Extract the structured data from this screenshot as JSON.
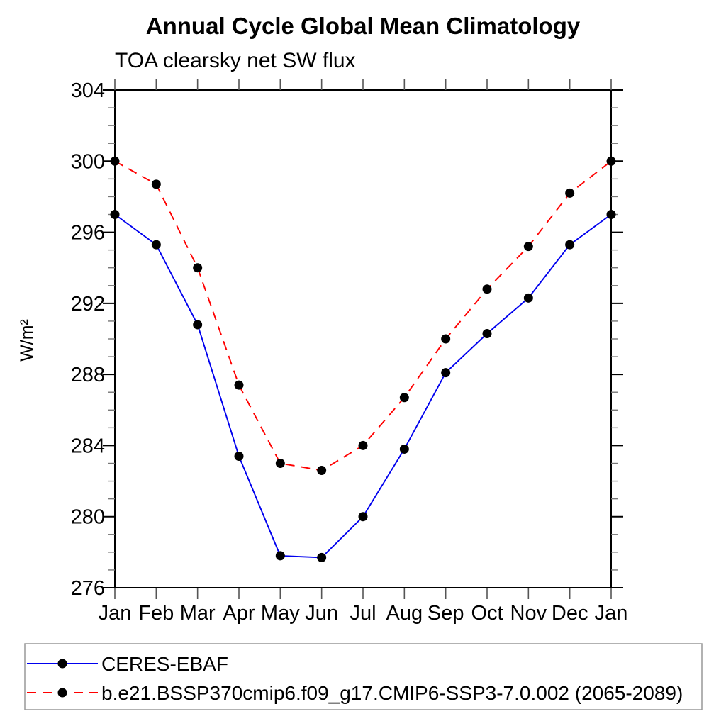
{
  "chart_data": {
    "type": "line",
    "title": "Annual Cycle Global Mean Climatology",
    "subtitle": "TOA clearsky net SW flux",
    "xlabel": "",
    "ylabel": "W/m²",
    "categories": [
      "Jan",
      "Feb",
      "Mar",
      "Apr",
      "May",
      "Jun",
      "Jul",
      "Aug",
      "Sep",
      "Oct",
      "Nov",
      "Dec",
      "Jan"
    ],
    "ylim": [
      276,
      304
    ],
    "ytick_major": 4,
    "ytick_minor": 1,
    "grid": "off",
    "legend_position": "bottom",
    "series": [
      {
        "name": "CERES-EBAF",
        "color": "#0000ee",
        "line_style": "solid",
        "marker": "black-dot",
        "values": [
          297.0,
          295.3,
          290.8,
          283.4,
          277.8,
          277.7,
          280.0,
          283.8,
          288.1,
          290.3,
          292.3,
          295.3,
          297.0
        ]
      },
      {
        "name": "b.e21.BSSP370cmip6.f09_g17.CMIP6-SSP3-7.0.002 (2065-2089)",
        "color": "#ff0000",
        "line_style": "dashed",
        "marker": "black-dot",
        "values": [
          300.0,
          298.7,
          294.0,
          287.4,
          283.0,
          282.6,
          284.0,
          286.7,
          290.0,
          292.8,
          295.2,
          298.2,
          300.0
        ]
      }
    ]
  },
  "colors": {
    "axis": "#000000",
    "minor_tick": "#777777",
    "month_tick": "#555555",
    "legend_border": "#999999",
    "marker": "#000000"
  }
}
